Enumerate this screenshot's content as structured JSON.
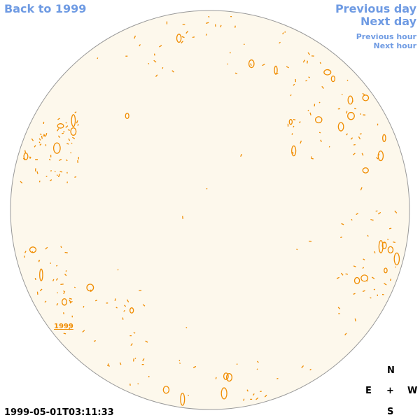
{
  "navigation": {
    "back": "Back to 1999",
    "previous_day": "Previous day",
    "next_day": "Next day",
    "previous_hour": "Previous hour",
    "next_hour": "Next hour"
  },
  "image": {
    "label": "1999",
    "compass": {
      "north": "N",
      "east": "E",
      "center": "+",
      "west": "W",
      "south": "S"
    }
  },
  "timestamp": "1999-05-01T03:11:33"
}
